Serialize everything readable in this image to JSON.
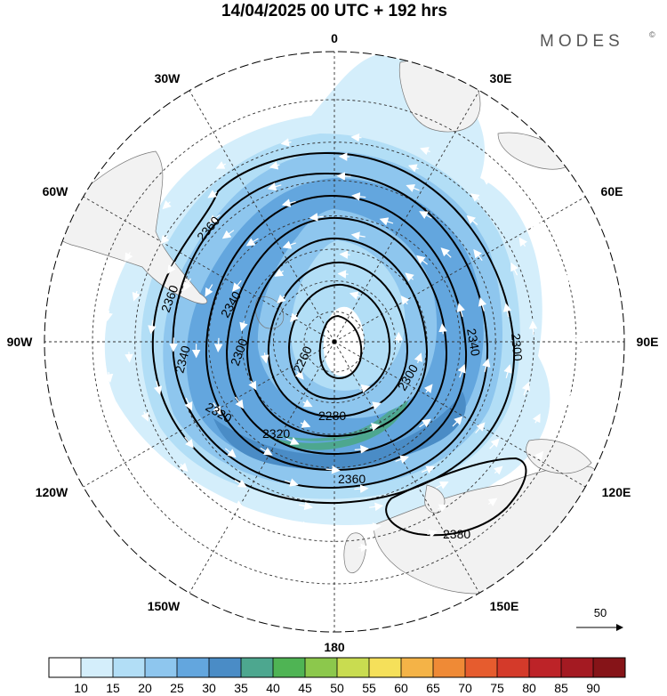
{
  "header": {
    "title": "14/04/2025  00 UTC  + 192 hrs",
    "brand": "MODES",
    "brand_mark": "©"
  },
  "map": {
    "projection": "south-polar-stereographic",
    "lon_labels": [
      "0",
      "30E",
      "60E",
      "90E",
      "120E",
      "150E",
      "180",
      "150W",
      "120W",
      "90W",
      "60W",
      "30W"
    ],
    "lat_circles_deg": [
      -20,
      -30,
      -40,
      -50,
      -60,
      -70,
      -80
    ],
    "contour_labels": [
      "2360",
      "2360",
      "2340",
      "2340",
      "2300",
      "2260",
      "2280",
      "2300",
      "2320",
      "2320",
      "2340",
      "2300",
      "2360",
      "2380"
    ],
    "vector_reference": {
      "label": "50"
    }
  },
  "colorbar": {
    "ticks": [
      "10",
      "15",
      "20",
      "25",
      "30",
      "35",
      "40",
      "45",
      "50",
      "55",
      "60",
      "65",
      "70",
      "75",
      "80",
      "85",
      "90"
    ],
    "colors": [
      "#ffffff",
      "#d4eefb",
      "#b2def6",
      "#8ec6ee",
      "#63a6de",
      "#4a8cc6",
      "#4da78f",
      "#4fb454",
      "#8cc84c",
      "#c9dc50",
      "#f5e05a",
      "#f4b347",
      "#ef8a36",
      "#e65c2e",
      "#d43a2a",
      "#bd2328",
      "#a41a22",
      "#861418"
    ]
  }
}
